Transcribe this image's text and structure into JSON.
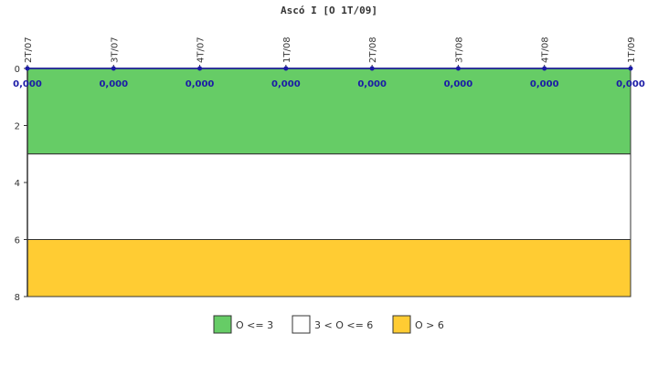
{
  "chart_data": {
    "type": "line",
    "title": "Ascó I [O 1T/09]",
    "categories": [
      "2T/07",
      "3T/07",
      "4T/07",
      "1T/08",
      "2T/08",
      "3T/08",
      "4T/08",
      "1T/09"
    ],
    "series": [
      {
        "values": [
          0,
          0,
          0,
          0,
          0,
          0,
          0,
          0
        ],
        "data_labels": [
          "0,000",
          "0,000",
          "0,000",
          "0,000",
          "0,000",
          "0,000",
          "0,000",
          "0,000"
        ]
      }
    ],
    "y_axis": {
      "ylim": [
        0,
        8
      ],
      "inverted": true,
      "ticks": [
        0,
        2,
        4,
        6,
        8
      ]
    },
    "x_axis": {
      "position": "top",
      "tick_label_rotation": "vertical"
    },
    "bands": [
      {
        "from": 0,
        "to": 3,
        "color": "#66cc66",
        "label": "O <= 3"
      },
      {
        "from": 3,
        "to": 6,
        "color": "#ffffff",
        "label": "3 < O <= 6"
      },
      {
        "from": 6,
        "to": 8,
        "color": "#ffcc33",
        "label": "O > 6"
      }
    ],
    "line_color": "#1a1aa6",
    "legend_position": "bottom",
    "grid": false
  }
}
